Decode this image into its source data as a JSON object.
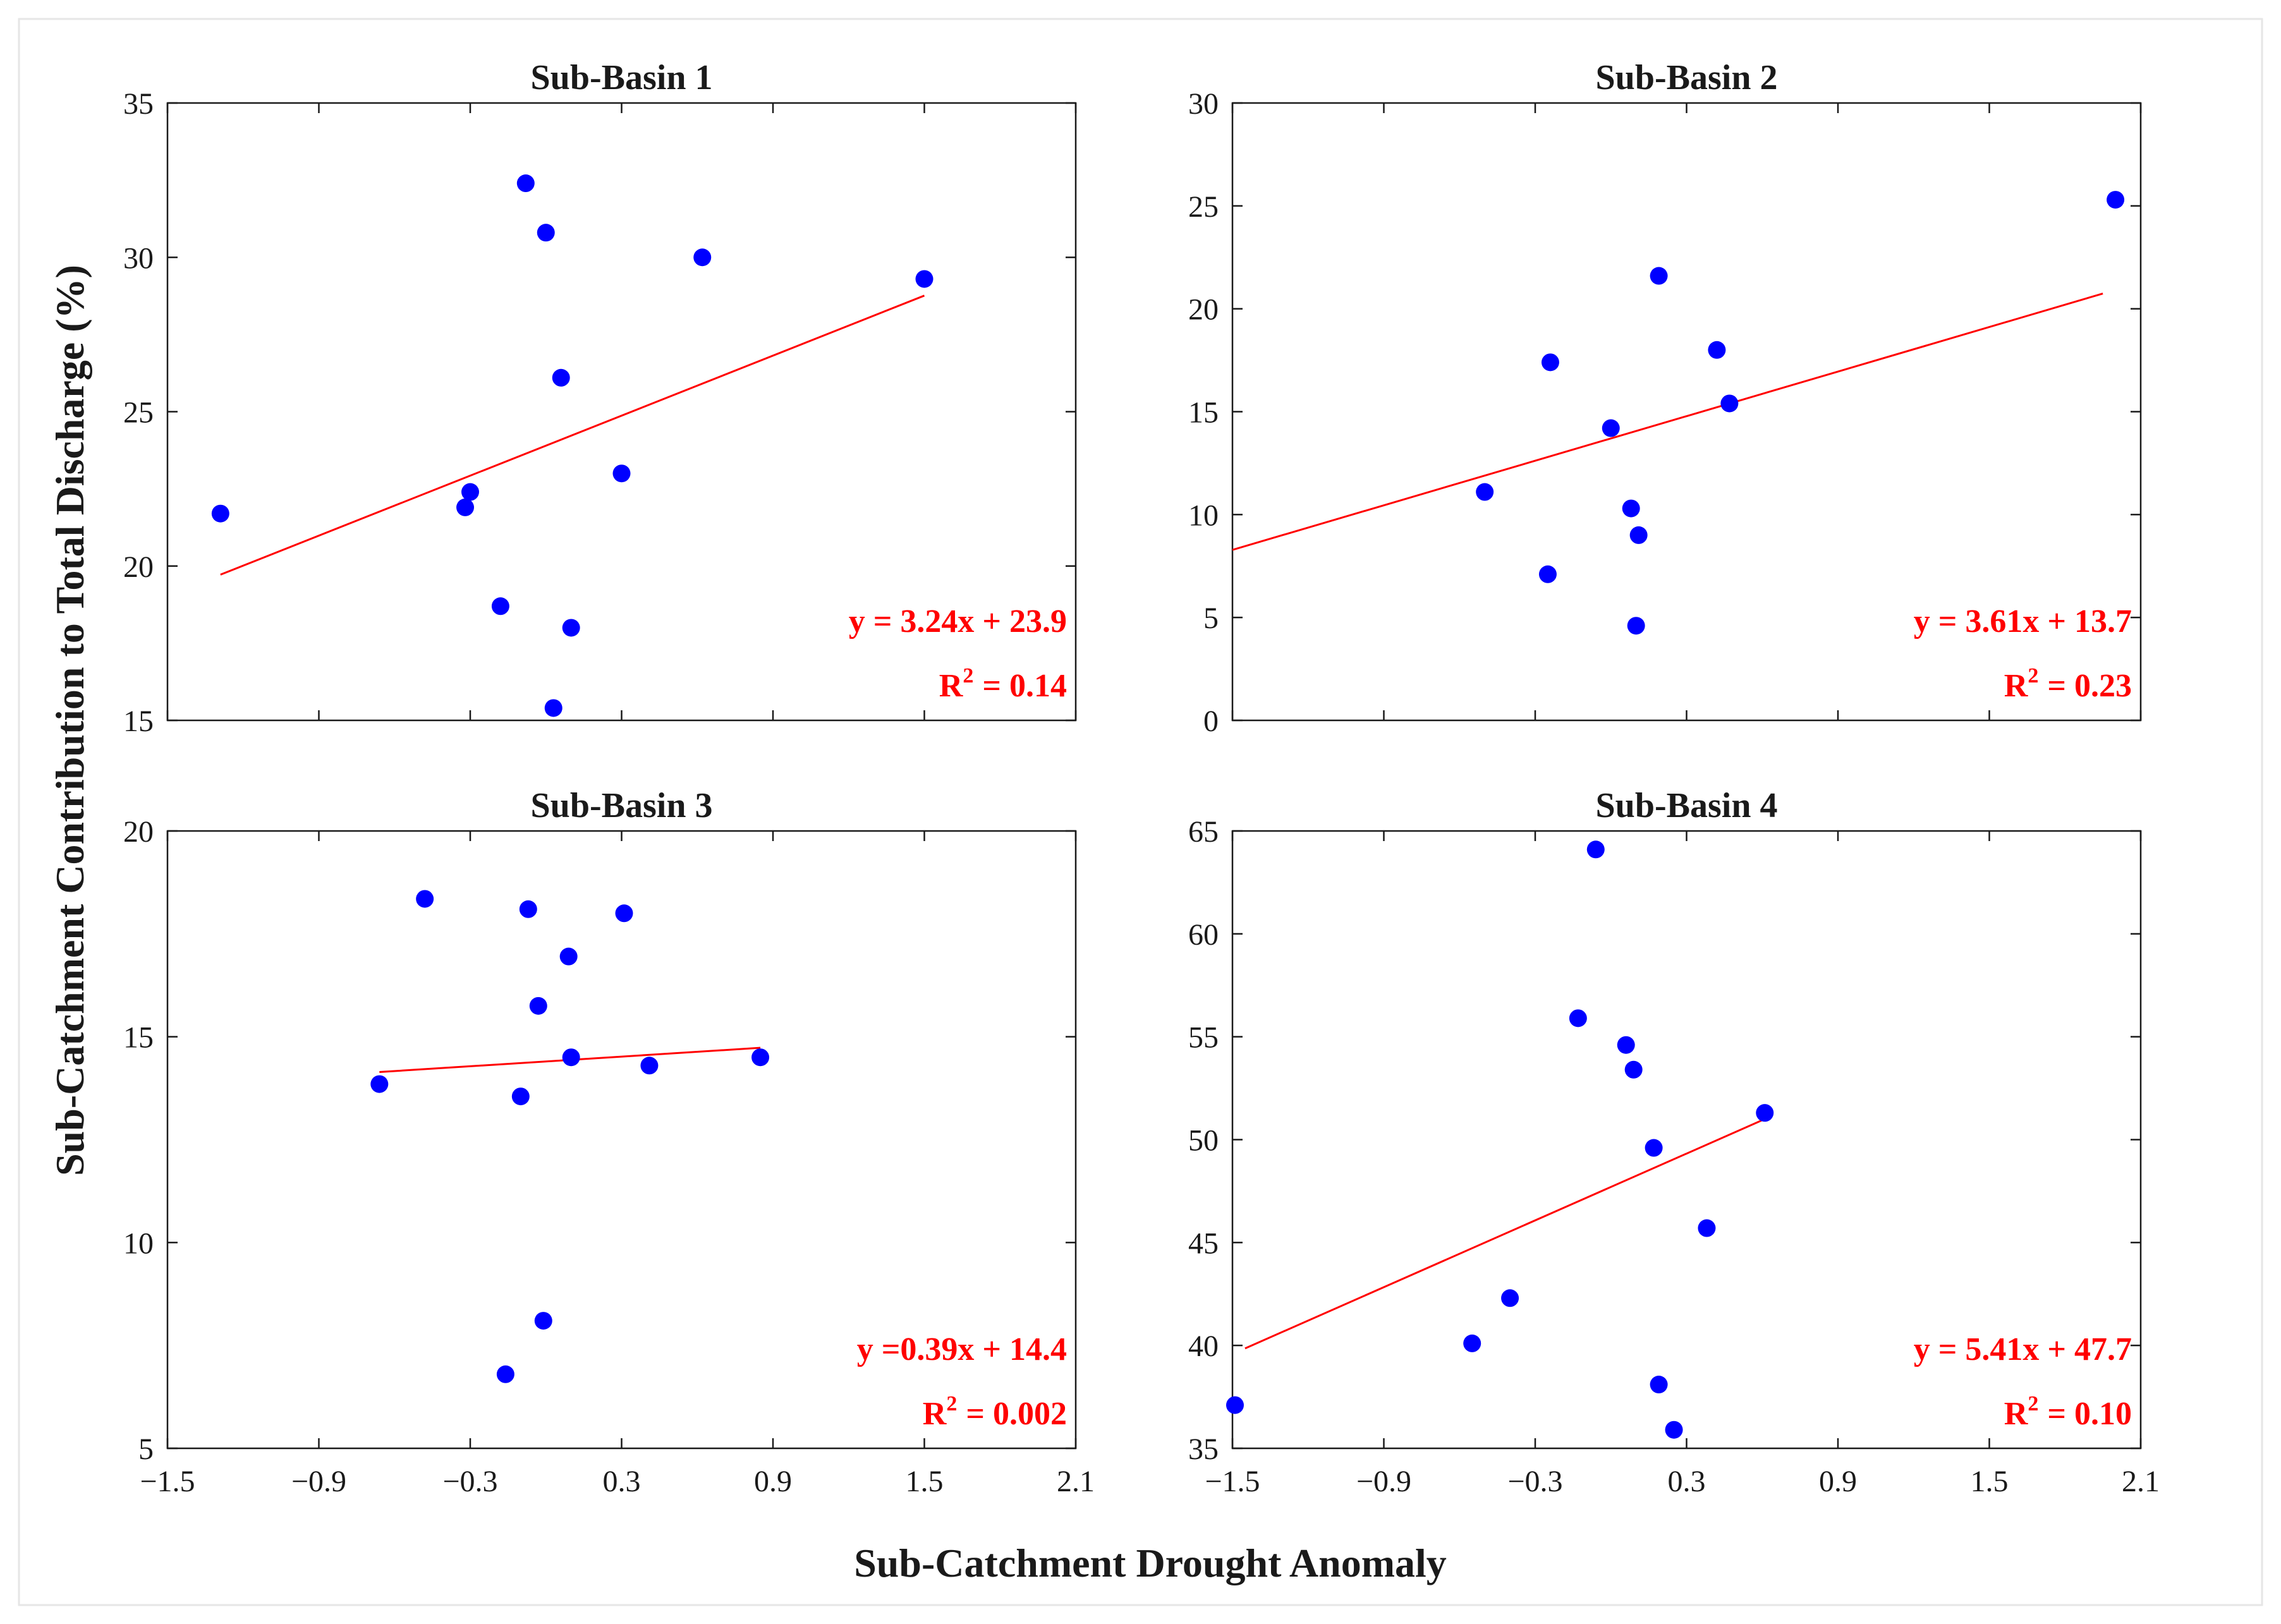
{
  "figure": {
    "xlabel": "Sub-Catchment Drought Anomaly",
    "ylabel": "Sub-Catchment Contribution to Total Discharge (%)"
  },
  "colors": {
    "points": "#0000ff",
    "fit": "#ff0000",
    "axes": "#1a1a1a"
  },
  "chart_data": [
    {
      "type": "scatter",
      "title": "Sub-Basin 1",
      "xlim": [
        -1.5,
        2.1
      ],
      "ylim": [
        15,
        35
      ],
      "xticks": [
        -1.5,
        -0.9,
        -0.3,
        0.3,
        0.9,
        1.5,
        2.1
      ],
      "yticks": [
        15,
        20,
        25,
        30,
        35
      ],
      "points": [
        [
          -1.29,
          21.7
        ],
        [
          -0.32,
          21.9
        ],
        [
          -0.3,
          22.4
        ],
        [
          -0.18,
          18.7
        ],
        [
          -0.08,
          32.4
        ],
        [
          0.0,
          30.8
        ],
        [
          0.03,
          15.4
        ],
        [
          0.06,
          26.1
        ],
        [
          0.1,
          18.0
        ],
        [
          0.3,
          23.0
        ],
        [
          0.62,
          30.0
        ],
        [
          1.5,
          29.3
        ]
      ],
      "fit": {
        "slope": 3.24,
        "intercept": 23.9,
        "x_range": [
          -1.29,
          1.5
        ]
      },
      "equation": "y = 3.24x + 23.9",
      "r2_label": "R",
      "r2_exp": "2",
      "r2_value": "=  0.14",
      "show_xticklabels": false
    },
    {
      "type": "scatter",
      "title": "Sub-Basin 2",
      "xlim": [
        -1.5,
        2.1
      ],
      "ylim": [
        0,
        30
      ],
      "xticks": [
        -1.5,
        -0.9,
        -0.3,
        0.3,
        0.9,
        1.5,
        2.1
      ],
      "yticks": [
        0,
        5,
        10,
        15,
        20,
        25,
        30
      ],
      "points": [
        [
          -0.5,
          11.1
        ],
        [
          -0.25,
          7.1
        ],
        [
          -0.24,
          17.4
        ],
        [
          0.0,
          14.2
        ],
        [
          0.08,
          10.3
        ],
        [
          0.1,
          4.6
        ],
        [
          0.11,
          9.0
        ],
        [
          0.19,
          21.6
        ],
        [
          0.42,
          18.0
        ],
        [
          0.47,
          15.4
        ],
        [
          2.0,
          25.3
        ]
      ],
      "fit": {
        "slope": 3.61,
        "intercept": 13.7,
        "x_range": [
          -1.5,
          1.95
        ]
      },
      "equation": "y = 3.61x + 13.7",
      "r2_label": "R",
      "r2_exp": "2",
      "r2_value": "=  0.23",
      "show_xticklabels": false
    },
    {
      "type": "scatter",
      "title": "Sub-Basin 3",
      "xlim": [
        -1.5,
        2.1
      ],
      "ylim": [
        5,
        20
      ],
      "xticks": [
        -1.5,
        -0.9,
        -0.3,
        0.3,
        0.9,
        1.5,
        2.1
      ],
      "yticks": [
        5,
        10,
        15,
        20
      ],
      "points": [
        [
          -0.66,
          13.85
        ],
        [
          -0.48,
          18.35
        ],
        [
          -0.16,
          6.8
        ],
        [
          -0.1,
          13.55
        ],
        [
          -0.07,
          18.1
        ],
        [
          -0.03,
          15.75
        ],
        [
          -0.01,
          8.1
        ],
        [
          0.09,
          16.95
        ],
        [
          0.1,
          14.5
        ],
        [
          0.31,
          18.0
        ],
        [
          0.41,
          14.3
        ],
        [
          0.85,
          14.5
        ]
      ],
      "fit": {
        "slope": 0.39,
        "intercept": 14.4,
        "x_range": [
          -0.66,
          0.85
        ]
      },
      "equation": "y =0.39x + 14.4",
      "r2_label": "R",
      "r2_exp": "2",
      "r2_value": "=  0.002",
      "show_xticklabels": true
    },
    {
      "type": "scatter",
      "title": "Sub-Basin 4",
      "xlim": [
        -1.5,
        2.1
      ],
      "ylim": [
        35,
        65
      ],
      "xticks": [
        -1.5,
        -0.9,
        -0.3,
        0.3,
        0.9,
        1.5,
        2.1
      ],
      "yticks": [
        35,
        40,
        45,
        50,
        55,
        60,
        65
      ],
      "points": [
        [
          -1.49,
          37.1
        ],
        [
          -0.55,
          40.1
        ],
        [
          -0.4,
          42.3
        ],
        [
          -0.13,
          55.9
        ],
        [
          -0.06,
          64.1
        ],
        [
          0.06,
          54.6
        ],
        [
          0.09,
          53.4
        ],
        [
          0.17,
          49.6
        ],
        [
          0.19,
          38.1
        ],
        [
          0.25,
          35.9
        ],
        [
          0.38,
          45.7
        ],
        [
          0.61,
          51.3
        ]
      ],
      "fit": {
        "slope": 5.41,
        "intercept": 47.7,
        "x_range": [
          -1.45,
          0.61
        ]
      },
      "equation": "y = 5.41x + 47.7",
      "r2_label": "R",
      "r2_exp": "2",
      "r2_value": "=  0.10",
      "show_xticklabels": true
    }
  ]
}
